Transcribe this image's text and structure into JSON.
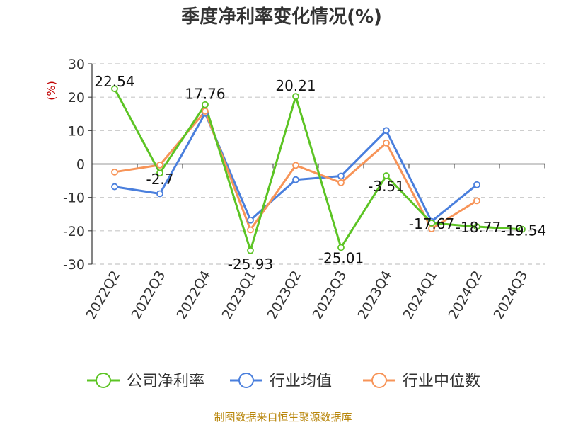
{
  "chart_data": {
    "type": "line",
    "title": "季度净利率变化情况(%)",
    "ylabel": "(%)",
    "categories": [
      "2022Q2",
      "2022Q3",
      "2022Q4",
      "2023Q1",
      "2023Q2",
      "2023Q3",
      "2023Q4",
      "2024Q1",
      "2024Q2",
      "2024Q3"
    ],
    "ylim": [
      -30,
      30
    ],
    "yticks": [
      30,
      20,
      10,
      0,
      -10,
      -20,
      -30
    ],
    "grid": true,
    "legend_position": "bottom",
    "series": [
      {
        "name": "公司净利率",
        "color": "#5cc424",
        "values": [
          22.54,
          -2.7,
          17.76,
          -25.93,
          20.21,
          -25.01,
          -3.51,
          -17.67,
          -18.77,
          -19.54
        ],
        "labels": [
          "22.54",
          "-2.7",
          "17.76",
          "-25.93",
          "20.21",
          "-25.01",
          "-3.51",
          "-17.67",
          "-18.77",
          "-19.54"
        ]
      },
      {
        "name": "行业均值",
        "color": "#4a7fdd",
        "values": [
          -6.8,
          -8.9,
          15.2,
          -16.8,
          -4.7,
          -3.6,
          10.0,
          -17.2,
          -6.2,
          null
        ]
      },
      {
        "name": "行业中位数",
        "color": "#f79458",
        "values": [
          -2.4,
          -0.3,
          15.8,
          -19.7,
          -0.4,
          -5.6,
          6.3,
          -19.4,
          -11.0,
          null
        ]
      }
    ]
  },
  "source_text": "制图数据来自恒生聚源数据库"
}
